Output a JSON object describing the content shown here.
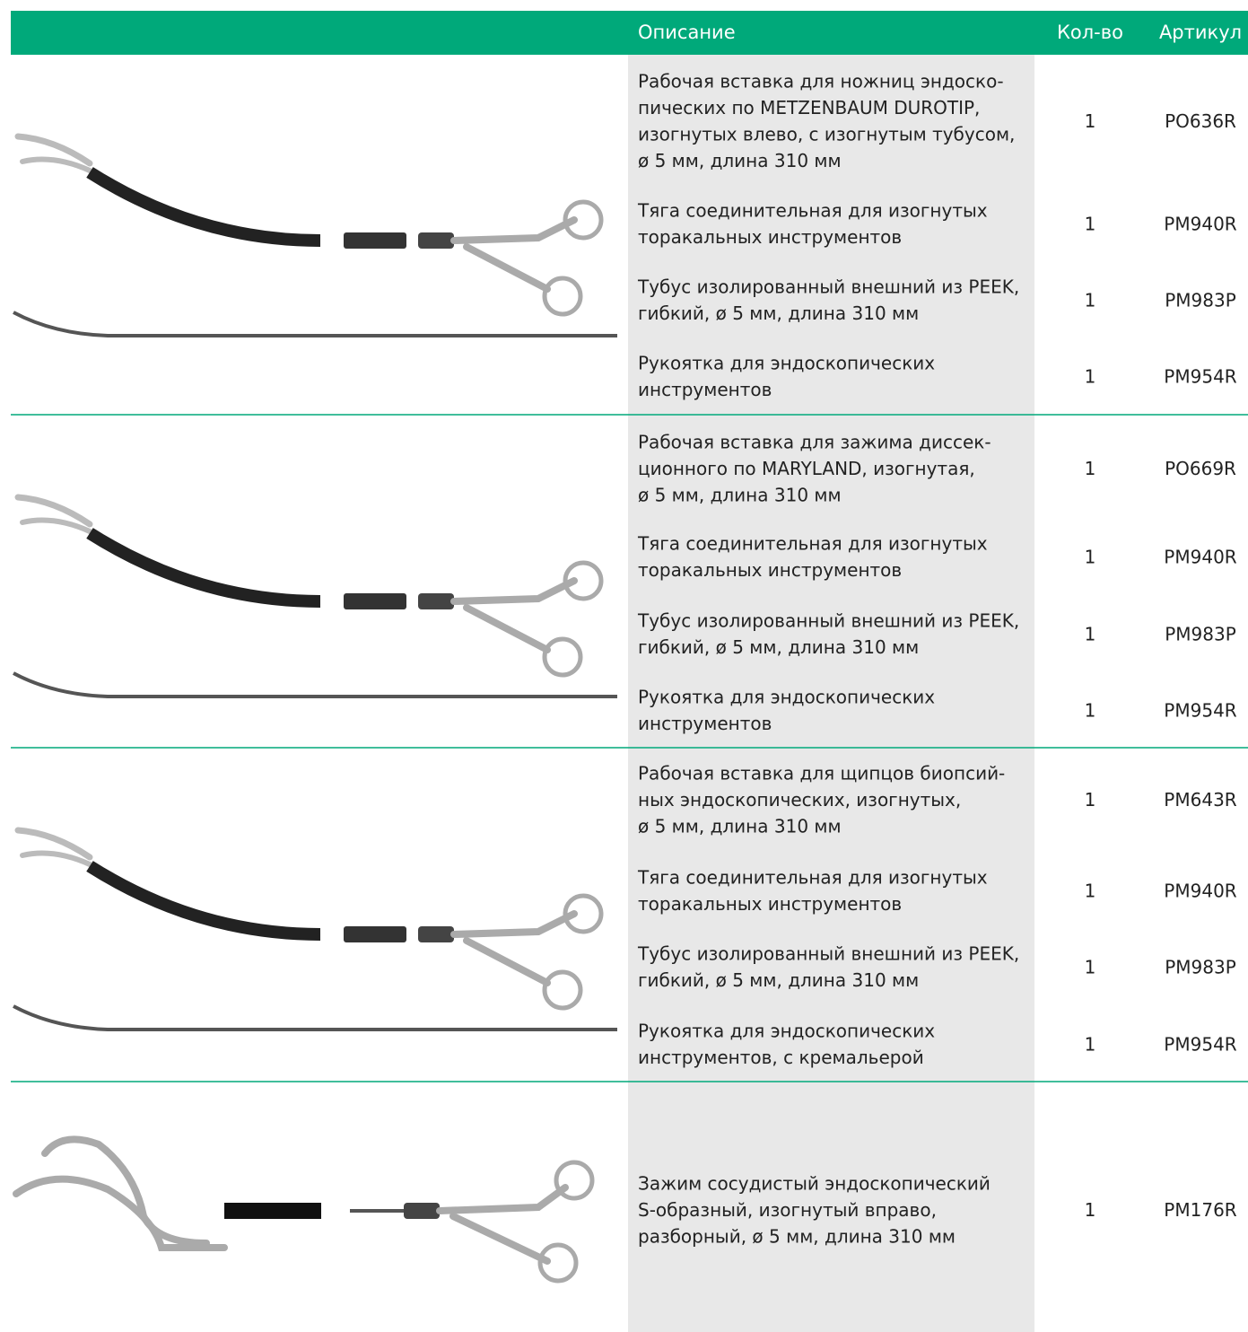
{
  "header": {
    "description": "Описание",
    "qty": "Кол-во",
    "article": "Артикул"
  },
  "groups": [
    {
      "items": [
        {
          "description": [
            "Рабочая вставка для ножниц эндоско-",
            "пических по METZENBAUM DUROTIP,",
            "изогнутых влево, с изогнутым тубусом,",
            "ø 5 мм, длина 310 мм"
          ],
          "qty": "1",
          "article": "PO636R"
        },
        {
          "description": [
            "Тяга соединительная для изогнутых",
            "торакальных инструментов"
          ],
          "qty": "1",
          "article": "PM940R"
        },
        {
          "description": [
            "Тубус изолированный внешний из PEEK,",
            "гибкий, ø 5 мм, длина 310 мм"
          ],
          "qty": "1",
          "article": "PM983P"
        },
        {
          "description": [
            "Рукоятка для эндоскопических",
            "инструментов"
          ],
          "qty": "1",
          "article": "PM954R"
        }
      ]
    },
    {
      "items": [
        {
          "description": [
            "Рабочая вставка для зажима диссек-",
            "ционного по MARYLAND, изогнутая,",
            "ø 5 мм, длина 310 мм"
          ],
          "qty": "1",
          "article": "PO669R"
        },
        {
          "description": [
            "Тяга соединительная для изогнутых",
            "торакальных инструментов"
          ],
          "qty": "1",
          "article": "PM940R"
        },
        {
          "description": [
            "Тубус изолированный внешний из PEEK,",
            "гибкий, ø 5 мм, длина 310 мм"
          ],
          "qty": "1",
          "article": "PM983P"
        },
        {
          "description": [
            "Рукоятка для эндоскопических",
            "инструментов"
          ],
          "qty": "1",
          "article": "PM954R"
        }
      ]
    },
    {
      "items": [
        {
          "description": [
            "Рабочая вставка для щипцов биопсий-",
            "ных эндоскопических, изогнутых,",
            "ø 5 мм, длина 310 мм"
          ],
          "qty": "1",
          "article": "PM643R"
        },
        {
          "description": [
            "Тяга соединительная для изогнутых",
            "торакальных инструментов"
          ],
          "qty": "1",
          "article": "PM940R"
        },
        {
          "description": [
            "Тубус изолированный внешний из PEEK,",
            "гибкий, ø 5 мм, длина 310 мм"
          ],
          "qty": "1",
          "article": "PM983P"
        },
        {
          "description": [
            "Рукоятка для эндоскопических",
            "инструментов, с кремальерой"
          ],
          "qty": "1",
          "article": "PM954R"
        }
      ]
    },
    {
      "items": [
        {
          "description": [
            "Зажим сосудистый эндоскопический",
            "S-образный, изогнутый вправо,",
            "разборный, ø 5 мм, длина 310 мм"
          ],
          "qty": "1",
          "article": "PM176R"
        }
      ]
    }
  ]
}
